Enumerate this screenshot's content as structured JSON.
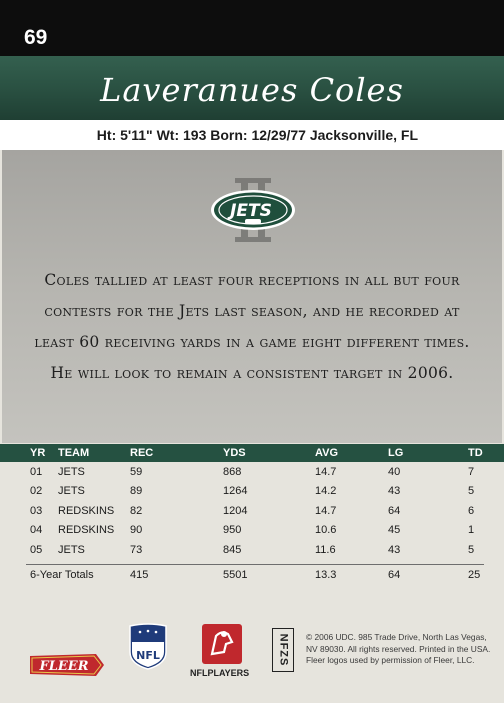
{
  "card_number": "69",
  "player_name": "Laveranues Coles",
  "bio": "Ht: 5'11\" Wt: 193 Born: 12/29/77 Jacksonville, FL",
  "team_logo_text": "JETS",
  "blurb": "Coles tallied at least four receptions in all but four contests for the Jets last season, and he recorded at least 60 receiving yards in a game eight different times. He will look to remain a consistent target in 2006.",
  "stats": {
    "headers": [
      "YR",
      "TEAM",
      "REC",
      "YDS",
      "AVG",
      "LG",
      "TD"
    ],
    "rows": [
      [
        "01",
        "JETS",
        "59",
        "868",
        "14.7",
        "40",
        "7"
      ],
      [
        "02",
        "JETS",
        "89",
        "1264",
        "14.2",
        "43",
        "5"
      ],
      [
        "03",
        "REDSKINS",
        "82",
        "1204",
        "14.7",
        "64",
        "6"
      ],
      [
        "04",
        "REDSKINS",
        "90",
        "950",
        "10.6",
        "45",
        "1"
      ],
      [
        "05",
        "JETS",
        "73",
        "845",
        "11.6",
        "43",
        "5"
      ]
    ],
    "totals": [
      "6-Year Totals",
      "415",
      "5501",
      "13.3",
      "64",
      "25"
    ]
  },
  "footer": {
    "fleer_logo": "FLEER",
    "nfl_logo": "NFL",
    "nflplayers_label": "NFLPLAYERS",
    "nfzs": "NFZS",
    "legal_lines": [
      "© 2006 UDC. 985 Trade Drive, North Las Vegas,",
      "NV 89030. All rights reserved. Printed in the USA.",
      "Fleer logos used by permission of Fleer, LLC."
    ]
  },
  "colors": {
    "jets_green": "#255141",
    "header_black": "#0d0d0d",
    "fleer_red": "#c0282d",
    "nfl_blue": "#1f3b7a"
  }
}
